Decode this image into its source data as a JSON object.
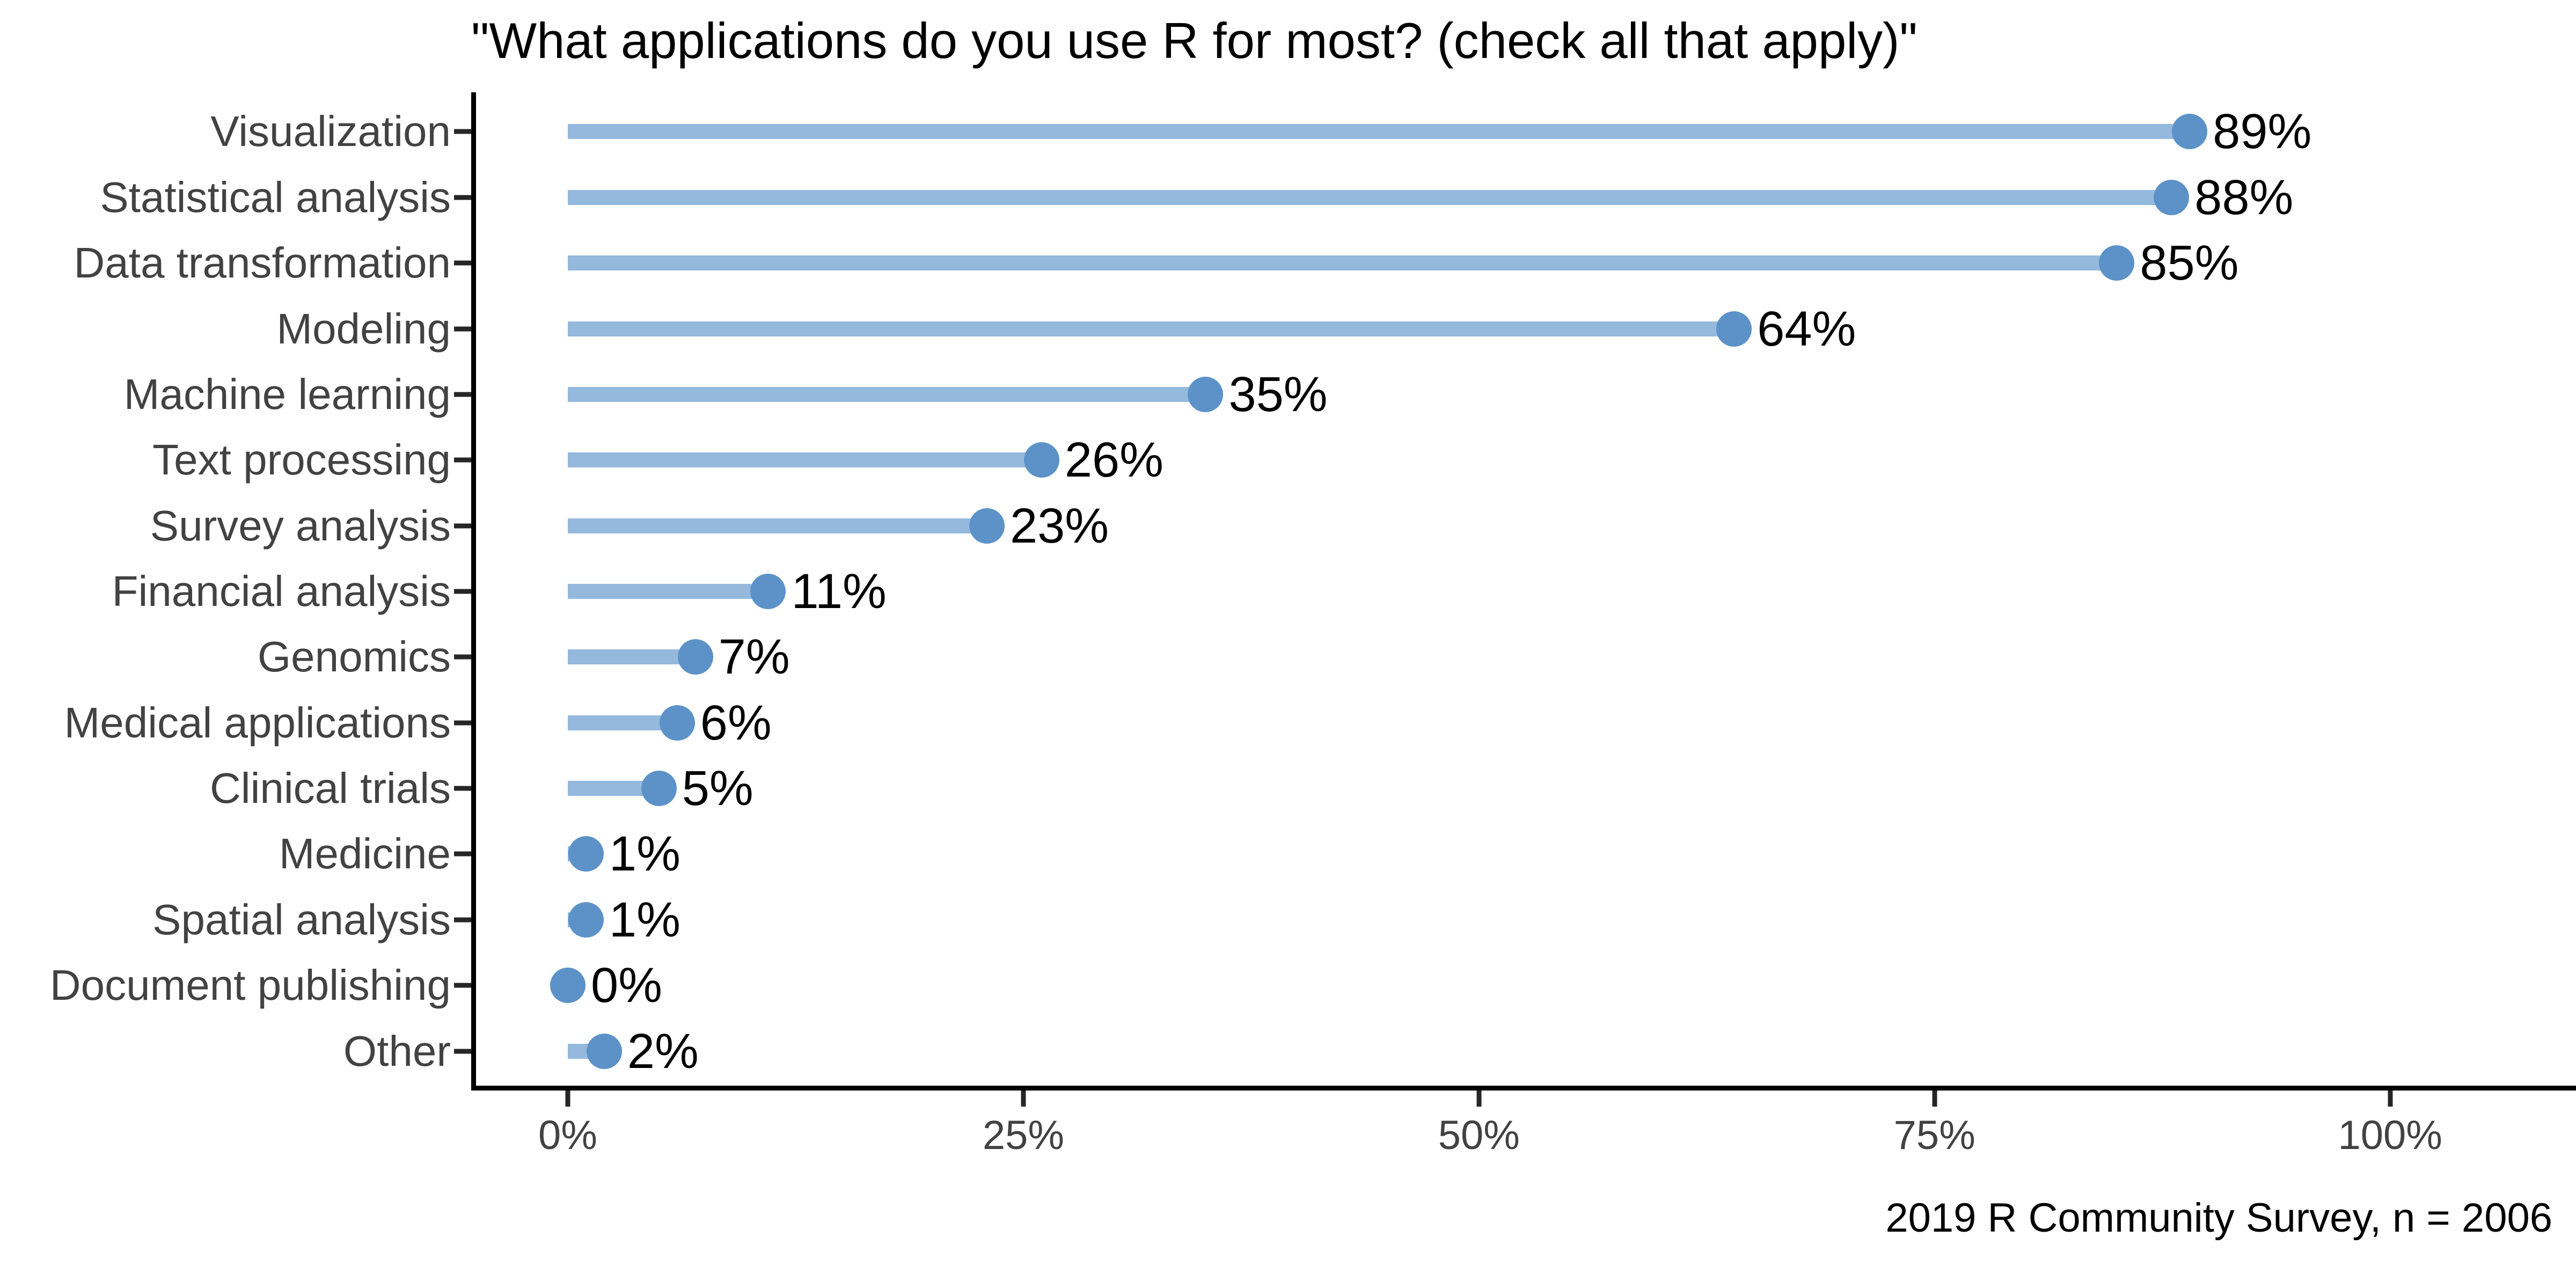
{
  "title": "\"What applications do you use R for most? (check all that apply)\"",
  "caption": "2019 R Community Survey, n = 2006",
  "chart_data": {
    "type": "bar",
    "variant": "lollipop",
    "orientation": "horizontal",
    "title": "\"What applications do you use R for most? (check all that apply)\"",
    "caption": "2019 R Community Survey, n = 2006",
    "xlabel": "",
    "ylabel": "",
    "grid": false,
    "legend": "none",
    "categories": [
      "Visualization",
      "Statistical analysis",
      "Data transformation",
      "Modeling",
      "Machine learning",
      "Text processing",
      "Survey analysis",
      "Financial analysis",
      "Genomics",
      "Medical applications",
      "Clinical trials",
      "Medicine",
      "Spatial analysis",
      "Document publishing",
      "Other"
    ],
    "values": [
      89,
      88,
      85,
      64,
      35,
      26,
      23,
      11,
      7,
      6,
      5,
      1,
      1,
      0,
      2
    ],
    "labels": [
      "89%",
      "88%",
      "85%",
      "64%",
      "35%",
      "26%",
      "23%",
      "11%",
      "7%",
      "6%",
      "5%",
      "1%",
      "1%",
      "0%",
      "2%"
    ],
    "xlim": [
      -5.3,
      110.2
    ],
    "x_ticks": [
      {
        "value": 0,
        "label": "0%"
      },
      {
        "value": 25,
        "label": "25%"
      },
      {
        "value": 50,
        "label": "50%"
      },
      {
        "value": 75,
        "label": "75%"
      },
      {
        "value": 100,
        "label": "100%"
      }
    ],
    "colors": {
      "dot": "#5C92C8",
      "stem": "#95B9DD",
      "axis": "#000000",
      "tick": "#262626",
      "category_text": "#424242",
      "value_text": "#000000",
      "background": "#ffffff"
    }
  }
}
